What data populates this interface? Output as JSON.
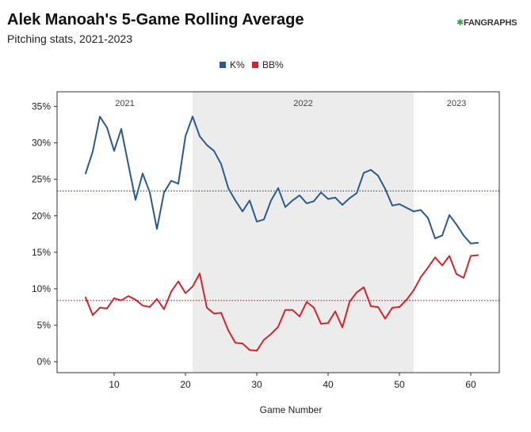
{
  "header": {
    "title": "Alek Manoah's 5-Game Rolling Average",
    "subtitle": "Pitching stats, 2021-2023",
    "logo_text": "FANGRAPHS"
  },
  "chart_data": {
    "type": "line",
    "title": "Alek Manoah's 5-Game Rolling Average",
    "subtitle": "Pitching stats, 2021-2023",
    "xlabel": "Game Number",
    "ylabel": "",
    "xlim": [
      2,
      64
    ],
    "ylim": [
      -1.5,
      37
    ],
    "xticks": [
      10,
      20,
      30,
      40,
      50,
      60
    ],
    "yticks": [
      0,
      5,
      10,
      15,
      20,
      25,
      30,
      35
    ],
    "ytick_labels": [
      "0%",
      "5%",
      "10%",
      "15%",
      "20%",
      "25%",
      "30%",
      "35%"
    ],
    "grid": false,
    "legend": "top-center",
    "season_bands": [
      {
        "label": "2021",
        "start": 2,
        "end": 21,
        "shaded": false
      },
      {
        "label": "2022",
        "start": 21,
        "end": 52,
        "shaded": true
      },
      {
        "label": "2023",
        "start": 52,
        "end": 64,
        "shaded": false
      }
    ],
    "reference_lines": [
      {
        "series": "K%",
        "y": 23.4,
        "color": "#2c5a8c"
      },
      {
        "series": "BB%",
        "y": 8.4,
        "color": "#d0262e"
      }
    ],
    "series": [
      {
        "name": "K%",
        "color": "#2c5a8c",
        "x": [
          6,
          7,
          8,
          9,
          10,
          11,
          12,
          13,
          14,
          15,
          16,
          17,
          18,
          19,
          20,
          21,
          22,
          23,
          24,
          25,
          26,
          27,
          28,
          29,
          30,
          31,
          32,
          33,
          34,
          35,
          36,
          37,
          38,
          39,
          40,
          41,
          42,
          43,
          44,
          45,
          46,
          47,
          48,
          49,
          50,
          51,
          52,
          53,
          54,
          55,
          56,
          57,
          58,
          59,
          60,
          61
        ],
        "values": [
          25.8,
          28.8,
          33.6,
          32.1,
          28.9,
          31.9,
          27.0,
          22.2,
          25.8,
          23.2,
          18.2,
          23.2,
          24.8,
          24.4,
          30.9,
          33.6,
          30.9,
          29.7,
          28.9,
          27.1,
          23.8,
          22.1,
          20.6,
          22.1,
          19.2,
          19.5,
          22.1,
          23.8,
          21.2,
          22.1,
          22.8,
          21.7,
          22.0,
          23.2,
          22.3,
          22.5,
          21.5,
          22.4,
          23.1,
          25.9,
          26.3,
          25.5,
          23.7,
          21.4,
          21.6,
          21.1,
          20.6,
          20.8,
          19.7,
          16.9,
          17.3,
          20.1,
          18.8,
          17.3,
          16.2,
          16.3
        ]
      },
      {
        "name": "BB%",
        "color": "#d0262e",
        "x": [
          6,
          7,
          8,
          9,
          10,
          11,
          12,
          13,
          14,
          15,
          16,
          17,
          18,
          19,
          20,
          21,
          22,
          23,
          24,
          25,
          26,
          27,
          28,
          29,
          30,
          31,
          32,
          33,
          34,
          35,
          36,
          37,
          38,
          39,
          40,
          41,
          42,
          43,
          44,
          45,
          46,
          47,
          48,
          49,
          50,
          51,
          52,
          53,
          54,
          55,
          56,
          57,
          58,
          59,
          60,
          61
        ],
        "values": [
          8.8,
          6.4,
          7.4,
          7.3,
          8.7,
          8.4,
          9.0,
          8.5,
          7.7,
          7.5,
          8.6,
          7.2,
          9.6,
          11.0,
          9.4,
          10.3,
          12.1,
          7.4,
          6.6,
          6.7,
          4.3,
          2.6,
          2.5,
          1.6,
          1.5,
          3.0,
          3.8,
          4.8,
          7.1,
          7.1,
          6.2,
          8.2,
          7.4,
          5.2,
          5.3,
          6.9,
          4.7,
          8.2,
          9.5,
          10.2,
          7.6,
          7.5,
          5.9,
          7.4,
          7.5,
          8.5,
          9.8,
          11.6,
          12.9,
          14.3,
          13.2,
          14.5,
          12.0,
          11.5,
          14.5,
          14.6
        ]
      }
    ]
  }
}
